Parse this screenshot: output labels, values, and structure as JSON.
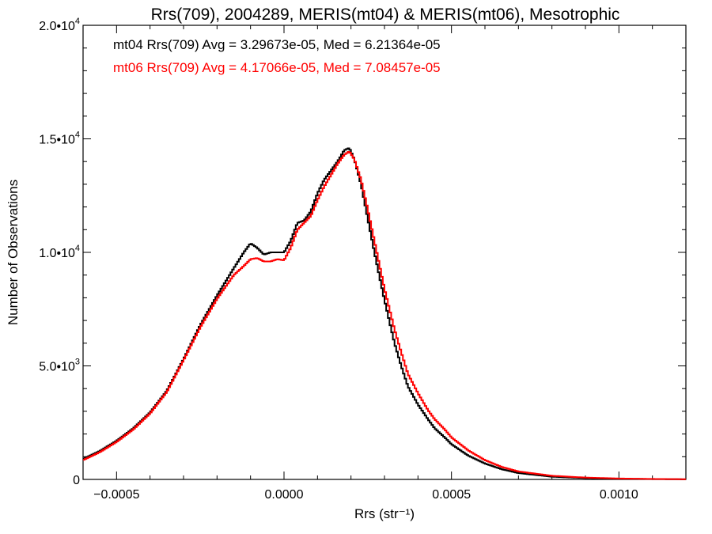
{
  "chart_data": {
    "type": "line",
    "title": "Rrs(709), 2004289, MERIS(mt04) & MERIS(mt06), Mesotrophic",
    "xlabel": "Rrs (str⁻¹)",
    "ylabel": "Number of Observations",
    "xlim": [
      -0.0006,
      0.0012
    ],
    "ylim": [
      0,
      20000
    ],
    "grid": false,
    "legend_position": "top-left",
    "x_ticks": [
      {
        "value": -0.0005,
        "label": "−0.0005"
      },
      {
        "value": 0.0,
        "label": "0.0000"
      },
      {
        "value": 0.0005,
        "label": "0.0005"
      },
      {
        "value": 0.001,
        "label": "0.0010"
      }
    ],
    "y_ticks": [
      {
        "value": 0,
        "mantissa": "0",
        "exponent": ""
      },
      {
        "value": 5000,
        "mantissa": "5.0•10",
        "exponent": "3"
      },
      {
        "value": 10000,
        "mantissa": "1.0•10",
        "exponent": "4"
      },
      {
        "value": 15000,
        "mantissa": "1.5•10",
        "exponent": "4"
      },
      {
        "value": 20000,
        "mantissa": "2.0•10",
        "exponent": "4"
      }
    ],
    "legend_entries": [
      {
        "text": "mt04 Rrs(709) Avg = 3.29673e-05, Med = 6.21364e-05",
        "color": "#000000"
      },
      {
        "text": "mt06 Rrs(709) Avg = 4.17066e-05, Med = 7.08457e-05",
        "color": "#ff0000"
      }
    ],
    "series": [
      {
        "color": "#000000",
        "x": [
          -0.0006,
          -0.00055,
          -0.0005,
          -0.00045,
          -0.0004,
          -0.00035,
          -0.0003,
          -0.00025,
          -0.0002,
          -0.00015,
          -0.00012,
          -0.0001,
          -8e-05,
          -6e-05,
          -4e-05,
          -2e-05,
          0.0,
          2e-05,
          4e-05,
          6e-05,
          8e-05,
          0.0001,
          0.00012,
          0.00014,
          0.00016,
          0.00018,
          0.000195,
          0.00021,
          0.00023,
          0.00025,
          0.00027,
          0.0003,
          0.00033,
          0.00035,
          0.00037,
          0.0004,
          0.00043,
          0.00045,
          0.00048,
          0.0005,
          0.00055,
          0.0006,
          0.00065,
          0.0007,
          0.0008,
          0.0009,
          0.001,
          0.0011,
          0.0012
        ],
        "y": [
          900,
          1250,
          1700,
          2250,
          2950,
          3900,
          5300,
          6800,
          8100,
          9300,
          10000,
          10400,
          10200,
          9900,
          10000,
          10000,
          10000,
          10500,
          11300,
          11400,
          11800,
          12600,
          13200,
          13600,
          14000,
          14500,
          14600,
          14100,
          13000,
          11500,
          10000,
          7900,
          6000,
          5000,
          4100,
          3300,
          2650,
          2250,
          1850,
          1550,
          1050,
          700,
          450,
          280,
          120,
          60,
          30,
          15,
          5
        ]
      },
      {
        "color": "#ff0000",
        "x": [
          -0.0006,
          -0.00055,
          -0.0005,
          -0.00045,
          -0.0004,
          -0.00035,
          -0.0003,
          -0.00025,
          -0.0002,
          -0.00015,
          -0.00012,
          -0.0001,
          -8e-05,
          -6e-05,
          -4e-05,
          -2e-05,
          0.0,
          2e-05,
          4e-05,
          6e-05,
          8e-05,
          0.0001,
          0.00012,
          0.00014,
          0.00016,
          0.00018,
          0.000195,
          0.00021,
          0.00023,
          0.00025,
          0.00027,
          0.0003,
          0.00033,
          0.00035,
          0.00037,
          0.0004,
          0.00043,
          0.00045,
          0.00048,
          0.0005,
          0.00055,
          0.0006,
          0.00065,
          0.0007,
          0.0008,
          0.0009,
          0.001,
          0.0011,
          0.0012
        ],
        "y": [
          850,
          1200,
          1650,
          2200,
          2900,
          3850,
          5250,
          6700,
          7950,
          9000,
          9400,
          9700,
          9750,
          9600,
          9600,
          9700,
          9650,
          10200,
          11000,
          11300,
          11600,
          12300,
          12900,
          13400,
          13900,
          14300,
          14450,
          14100,
          13200,
          11900,
          10500,
          8400,
          6600,
          5600,
          4650,
          3800,
          3050,
          2650,
          2200,
          1850,
          1280,
          850,
          550,
          350,
          160,
          80,
          40,
          20,
          8
        ]
      }
    ]
  }
}
